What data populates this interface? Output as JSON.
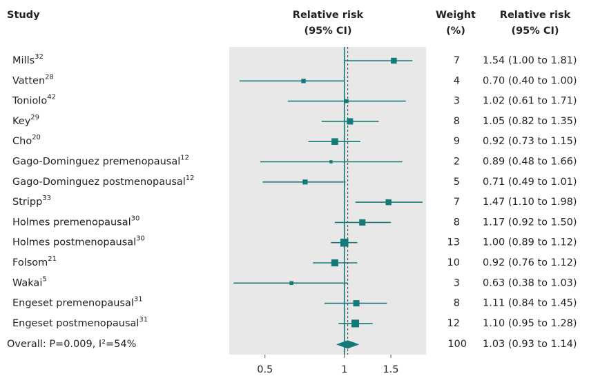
{
  "chart_data": {
    "type": "forest",
    "column_headers": [
      "Study",
      [
        "Relative risk",
        "(95% CI)"
      ],
      [
        "Weight",
        "(%)"
      ],
      [
        "Relative risk",
        "(95% CI)"
      ]
    ],
    "categories": [
      "Mills",
      "Vatten",
      "Toniolo",
      "Key",
      "Cho",
      "Gago-Dominguez premenopausal",
      "Gago-Dominguez postmenopausal",
      "Stripp",
      "Holmes premenopausal",
      "Holmes postmenopausal",
      "Folsom",
      "Wakai",
      "Engeset premenopausal",
      "Engeset postmenopausal"
    ],
    "refs": [
      "32",
      "28",
      "42",
      "29",
      "20",
      "12",
      "12",
      "33",
      "30",
      "30",
      "21",
      "5",
      "31",
      "31"
    ],
    "weights": [
      7,
      4,
      3,
      8,
      9,
      2,
      5,
      7,
      8,
      13,
      10,
      3,
      8,
      12
    ],
    "values": [
      1.54,
      0.7,
      1.02,
      1.05,
      0.92,
      0.89,
      0.71,
      1.47,
      1.17,
      1.0,
      0.92,
      0.63,
      1.11,
      1.1
    ],
    "lower": [
      1.0,
      0.4,
      0.61,
      0.82,
      0.73,
      0.48,
      0.49,
      1.1,
      0.92,
      0.89,
      0.76,
      0.38,
      0.84,
      0.95
    ],
    "upper": [
      1.81,
      1.0,
      1.71,
      1.35,
      1.15,
      1.66,
      1.01,
      1.98,
      1.5,
      1.12,
      1.12,
      1.03,
      1.45,
      1.28
    ],
    "value_labels": [
      "1.54 (1.00 to 1.81)",
      "0.70 (0.40 to 1.00)",
      "1.02 (0.61 to 1.71)",
      "1.05 (0.82 to 1.35)",
      "0.92 (0.73 to 1.15)",
      "0.89 (0.48 to 1.66)",
      "0.71 (0.49 to 1.01)",
      "1.47 (1.10 to 1.98)",
      "1.17 (0.92 to 1.50)",
      "1.00 (0.89 to 1.12)",
      "0.92 (0.76 to 1.12)",
      "0.63 (0.38 to 1.03)",
      "1.11 (0.84 to 1.45)",
      "1.10 (0.95 to 1.28)"
    ],
    "overall": {
      "label": "Overall: P=0.009, I²=54%",
      "weight": 100,
      "value": 1.03,
      "lower": 0.93,
      "upper": 1.14,
      "value_label": "1.03 (0.93 to 1.14)"
    },
    "color": "#137a78",
    "xscale": "log",
    "xlim": [
      0.366,
      2.04
    ],
    "xticks": [
      0.5,
      1,
      1.5
    ]
  }
}
